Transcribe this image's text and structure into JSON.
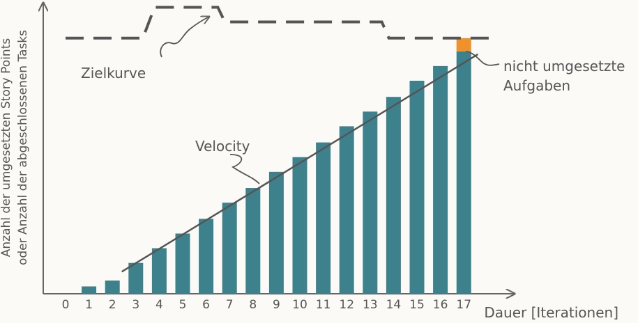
{
  "chart_data": {
    "type": "bar",
    "title": "",
    "xlabel": "Dauer [Iterationen]",
    "ylabel": [
      "Anzahl der umgesetzten Story Points",
      "oder Anzahl der abgeschlossenen Tasks"
    ],
    "categories": [
      "0",
      "1",
      "2",
      "3",
      "4",
      "5",
      "6",
      "7",
      "8",
      "9",
      "10",
      "11",
      "12",
      "13",
      "14",
      "15",
      "16",
      "17"
    ],
    "values": [
      0,
      5,
      9,
      21,
      31,
      41,
      51,
      62,
      72,
      83,
      93,
      103,
      114,
      124,
      134,
      145,
      155,
      165
    ],
    "unfinished": {
      "category": "17",
      "value": 9
    },
    "ylim": [
      0,
      190
    ],
    "target_curve": {
      "x": [
        0,
        3.3,
        3.8,
        6.5,
        6.8,
        13.5,
        13.8,
        18.3
      ],
      "y": [
        174,
        174,
        195,
        195,
        185,
        185,
        174,
        174
      ]
    },
    "velocity_line": {
      "x": [
        2.4,
        17.6
      ],
      "y": [
        15,
        163
      ]
    },
    "annotations": {
      "target": "Zielkurve",
      "velocity": "Velocity",
      "unfinished_line1": "nicht umgesetzte",
      "unfinished_line2": "Aufgaben"
    },
    "colors": {
      "bar": "#3d818c",
      "unfinished": "#f0922c",
      "line": "#555555",
      "axis": "#666666"
    },
    "grid": false,
    "legend": "none"
  }
}
